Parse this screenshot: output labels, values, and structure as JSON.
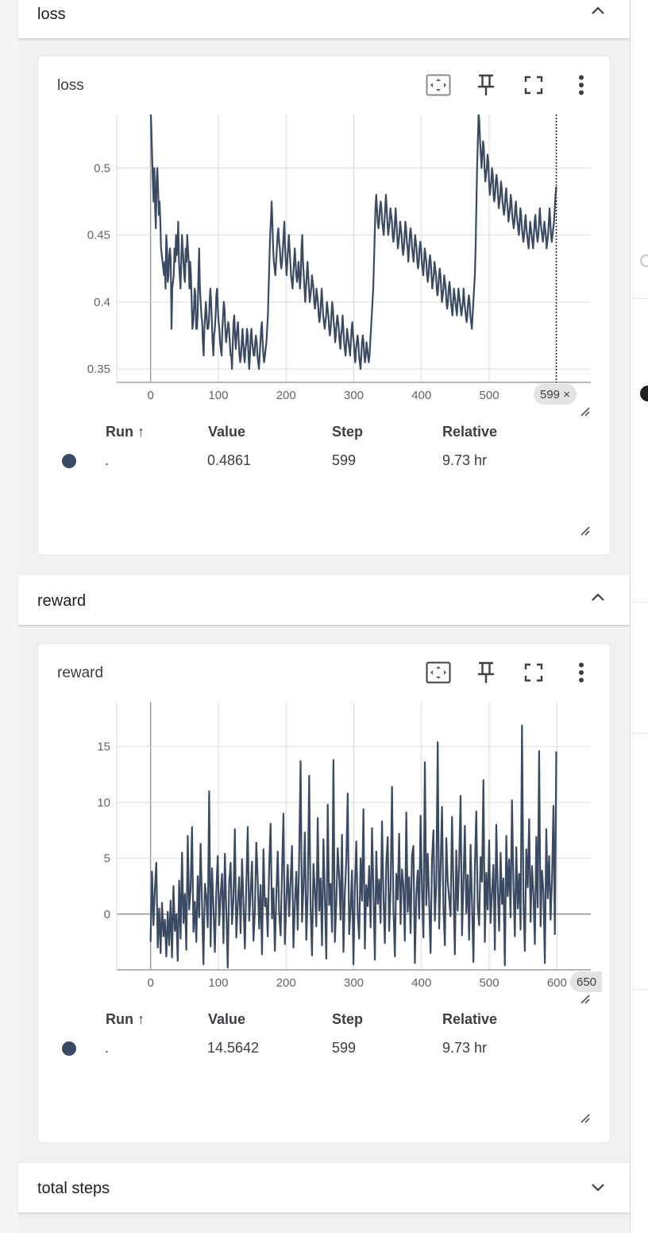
{
  "sections": {
    "loss": {
      "title": "loss"
    },
    "reward": {
      "title": "reward"
    },
    "total_steps": {
      "title": "total steps"
    }
  },
  "table_headers": {
    "run": "Run ↑",
    "value": "Value",
    "step": "Step",
    "relative": "Relative"
  },
  "cards": [
    {
      "title": "loss",
      "row": {
        "run": ".",
        "value": "0.4861",
        "step": "599",
        "relative": "9.73 hr"
      },
      "selected_step_chip": "599 ×"
    },
    {
      "title": "reward",
      "row": {
        "run": ".",
        "value": "14.5642",
        "step": "599",
        "relative": "9.73 hr"
      }
    }
  ],
  "colors": {
    "series": "#3b4a63",
    "grid": "#d9d9d9",
    "axis": "#9e9e9e"
  },
  "icons": [
    "fit-domain-icon",
    "pin-icon",
    "fullscreen-icon",
    "more-vert-icon",
    "chevron-up-icon",
    "chevron-down-icon",
    "resize-handle-icon"
  ],
  "chart_data": [
    {
      "type": "line",
      "title": "loss",
      "xlim": [
        -50,
        650
      ],
      "ylim": [
        0.34,
        0.54
      ],
      "x_ticks": [
        0,
        100,
        200,
        300,
        400,
        500
      ],
      "x_tick_labels": [
        "0",
        "100",
        "200",
        "300",
        "400",
        "500"
      ],
      "y_ticks": [
        0.35,
        0.4,
        0.45,
        0.5
      ],
      "y_tick_labels": [
        "0.35",
        "0.4",
        "0.45",
        "0.5"
      ],
      "selected_step": 599,
      "series": [
        {
          "values": [
            0.545,
            0.53,
            0.51,
            0.49,
            0.475,
            0.5,
            0.47,
            0.455,
            0.49,
            0.5,
            0.485,
            0.465,
            0.475,
            0.46,
            0.44,
            0.435,
            0.43,
            0.425,
            0.42,
            0.43,
            0.41,
            0.45,
            0.44,
            0.415,
            0.42,
            0.435,
            0.44,
            0.43,
            0.38,
            0.41,
            0.415,
            0.42,
            0.44,
            0.43,
            0.45,
            0.435,
            0.44,
            0.46,
            0.43,
            0.42,
            0.41,
            0.43,
            0.45,
            0.44,
            0.43,
            0.42,
            0.415,
            0.44,
            0.43,
            0.45,
            0.44,
            0.43,
            0.41,
            0.43,
            0.42,
            0.4,
            0.38,
            0.385,
            0.395,
            0.41,
            0.405,
            0.38,
            0.38,
            0.39,
            0.42,
            0.44,
            0.41,
            0.4,
            0.39,
            0.385,
            0.37,
            0.36,
            0.38,
            0.39,
            0.4,
            0.39,
            0.38,
            0.38,
            0.385,
            0.4,
            0.41,
            0.4,
            0.385,
            0.37,
            0.36,
            0.375,
            0.38,
            0.39,
            0.405,
            0.41,
            0.395,
            0.385,
            0.38,
            0.37,
            0.365,
            0.36,
            0.38,
            0.39,
            0.4,
            0.395,
            0.38,
            0.37,
            0.375,
            0.38,
            0.385,
            0.38,
            0.37,
            0.36,
            0.36,
            0.35,
            0.37,
            0.385,
            0.39,
            0.375,
            0.365,
            0.375,
            0.38,
            0.385,
            0.37,
            0.36,
            0.355,
            0.36,
            0.37,
            0.38,
            0.37,
            0.36,
            0.355,
            0.365,
            0.37,
            0.38,
            0.375,
            0.36,
            0.35,
            0.36,
            0.375,
            0.38,
            0.37,
            0.365,
            0.36,
            0.36,
            0.37,
            0.375,
            0.37,
            0.36,
            0.355,
            0.35,
            0.36,
            0.37,
            0.38,
            0.385,
            0.37,
            0.36,
            0.355,
            0.36,
            0.365,
            0.37,
            0.38,
            0.39,
            0.41,
            0.43,
            0.45,
            0.46,
            0.475,
            0.46,
            0.44,
            0.43,
            0.425,
            0.42,
            0.43,
            0.44,
            0.45,
            0.455,
            0.445,
            0.44,
            0.43,
            0.425,
            0.43,
            0.44,
            0.45,
            0.46,
            0.44,
            0.43,
            0.42,
            0.43,
            0.44,
            0.45,
            0.44,
            0.43,
            0.42,
            0.415,
            0.41,
            0.42,
            0.43,
            0.44,
            0.43,
            0.42,
            0.415,
            0.42,
            0.43,
            0.42,
            0.41,
            0.42,
            0.44,
            0.45,
            0.43,
            0.42,
            0.41,
            0.4,
            0.41,
            0.42,
            0.43,
            0.42,
            0.41,
            0.4,
            0.405,
            0.41,
            0.42,
            0.415,
            0.41,
            0.4,
            0.395,
            0.4,
            0.41,
            0.405,
            0.4,
            0.39,
            0.385,
            0.39,
            0.4,
            0.41,
            0.4,
            0.39,
            0.385,
            0.38,
            0.385,
            0.39,
            0.4,
            0.395,
            0.39,
            0.38,
            0.375,
            0.38,
            0.39,
            0.4,
            0.395,
            0.385,
            0.38,
            0.37,
            0.375,
            0.385,
            0.39,
            0.385,
            0.38,
            0.37,
            0.365,
            0.375,
            0.38,
            0.39,
            0.38,
            0.37,
            0.365,
            0.36,
            0.37,
            0.38,
            0.375,
            0.37,
            0.365,
            0.36,
            0.37,
            0.38,
            0.385,
            0.375,
            0.37,
            0.36,
            0.355,
            0.365,
            0.37,
            0.375,
            0.37,
            0.36,
            0.355,
            0.35,
            0.36,
            0.37,
            0.375,
            0.37,
            0.36,
            0.355,
            0.36,
            0.37,
            0.365,
            0.36,
            0.355,
            0.36,
            0.37,
            0.38,
            0.39,
            0.4,
            0.41,
            0.43,
            0.45,
            0.47,
            0.48,
            0.47,
            0.46,
            0.455,
            0.46,
            0.47,
            0.475,
            0.47,
            0.46,
            0.455,
            0.45,
            0.46,
            0.47,
            0.48,
            0.47,
            0.46,
            0.45,
            0.455,
            0.46,
            0.47,
            0.465,
            0.46,
            0.45,
            0.445,
            0.45,
            0.46,
            0.47,
            0.46,
            0.45,
            0.44,
            0.445,
            0.45,
            0.46,
            0.455,
            0.45,
            0.44,
            0.435,
            0.44,
            0.45,
            0.46,
            0.455,
            0.445,
            0.44,
            0.43,
            0.44,
            0.45,
            0.455,
            0.45,
            0.44,
            0.435,
            0.43,
            0.44,
            0.45,
            0.445,
            0.44,
            0.43,
            0.425,
            0.43,
            0.44,
            0.445,
            0.44,
            0.43,
            0.425,
            0.42,
            0.43,
            0.44,
            0.435,
            0.43,
            0.42,
            0.415,
            0.42,
            0.43,
            0.435,
            0.43,
            0.42,
            0.41,
            0.415,
            0.42,
            0.43,
            0.425,
            0.42,
            0.41,
            0.405,
            0.41,
            0.42,
            0.425,
            0.42,
            0.41,
            0.4,
            0.405,
            0.41,
            0.42,
            0.415,
            0.41,
            0.4,
            0.395,
            0.4,
            0.41,
            0.415,
            0.41,
            0.4,
            0.395,
            0.39,
            0.4,
            0.41,
            0.405,
            0.4,
            0.395,
            0.39,
            0.4,
            0.41,
            0.405,
            0.4,
            0.395,
            0.39,
            0.395,
            0.4,
            0.41,
            0.4,
            0.395,
            0.39,
            0.385,
            0.39,
            0.4,
            0.405,
            0.4,
            0.39,
            0.385,
            0.38,
            0.39,
            0.4,
            0.41,
            0.42,
            0.44,
            0.47,
            0.5,
            0.52,
            0.54,
            0.535,
            0.52,
            0.51,
            0.5,
            0.51,
            0.52,
            0.515,
            0.5,
            0.49,
            0.495,
            0.5,
            0.51,
            0.505,
            0.49,
            0.48,
            0.485,
            0.49,
            0.5,
            0.495,
            0.48,
            0.475,
            0.48,
            0.49,
            0.495,
            0.49,
            0.48,
            0.47,
            0.475,
            0.48,
            0.49,
            0.485,
            0.475,
            0.47,
            0.465,
            0.47,
            0.48,
            0.485,
            0.475,
            0.47,
            0.46,
            0.465,
            0.47,
            0.48,
            0.475,
            0.465,
            0.46,
            0.455,
            0.46,
            0.47,
            0.475,
            0.465,
            0.46,
            0.455,
            0.45,
            0.46,
            0.47,
            0.465,
            0.455,
            0.45,
            0.445,
            0.45,
            0.46,
            0.465,
            0.455,
            0.45,
            0.445,
            0.44,
            0.45,
            0.46,
            0.455,
            0.45,
            0.445,
            0.44,
            0.45,
            0.46,
            0.465,
            0.455,
            0.45,
            0.445,
            0.45,
            0.46,
            0.47,
            0.46,
            0.455,
            0.45,
            0.445,
            0.45,
            0.46,
            0.455,
            0.45,
            0.44,
            0.445,
            0.45,
            0.46,
            0.47,
            0.46,
            0.45,
            0.445,
            0.45,
            0.455,
            0.46,
            0.47,
            0.48,
            0.4861
          ]
        }
      ]
    },
    {
      "type": "line",
      "title": "reward",
      "xlim": [
        -50,
        650
      ],
      "ylim": [
        -5,
        19
      ],
      "x_ticks": [
        0,
        100,
        200,
        300,
        400,
        500,
        600
      ],
      "x_tick_labels": [
        "0",
        "100",
        "200",
        "300",
        "400",
        "500",
        "600"
      ],
      "x_partial_label": "650",
      "y_ticks": [
        0,
        5,
        10,
        15
      ],
      "y_tick_labels": [
        "0",
        "5",
        "10",
        "15"
      ],
      "series": [
        {
          "values": [
            -2.5,
            3.8,
            -1.0,
            2.2,
            4.6,
            -3.0,
            0.5,
            -3.5,
            1.0,
            -2.0,
            -0.5,
            -3.8,
            0.2,
            -2.8,
            1.2,
            -3.9,
            2.5,
            -1.5,
            0.0,
            -4.2,
            3.0,
            -2.2,
            5.5,
            -0.8,
            1.8,
            -3.2,
            7.0,
            0.4,
            2.2,
            7.8,
            -1.6,
            1.1,
            -2.5,
            3.4,
            -0.3,
            6.3,
            0.9,
            -4.5,
            2.7,
            1.5,
            -1.2,
            11.0,
            -2.9,
            4.1,
            0.6,
            -3.4,
            2.0,
            5.2,
            -1.0,
            1.7,
            3.6,
            -2.6,
            5.4,
            0.3,
            -4.8,
            2.8,
            4.6,
            -0.9,
            1.3,
            7.6,
            -2.1,
            0.8,
            3.3,
            -1.7,
            4.9,
            1.0,
            -3.1,
            2.5,
            7.8,
            -0.6,
            1.9,
            4.7,
            -2.4,
            0.2,
            6.4,
            3.1,
            -1.3,
            2.6,
            -3.6,
            5.8,
            0.7,
            1.4,
            -2.0,
            4.2,
            8.1,
            -0.4,
            2.3,
            -3.3,
            1.6,
            5.6,
            0.1,
            -1.9,
            3.7,
            9.0,
            -2.7,
            1.1,
            4.4,
            -0.2,
            2.9,
            6.1,
            -3.0,
            0.9,
            3.8,
            -1.4,
            5.1,
            13.7,
            -0.7,
            2.4,
            7.3,
            -2.3,
            1.8,
            12.4,
            0.6,
            -3.7,
            4.5,
            2.1,
            -1.1,
            8.6,
            0.3,
            3.2,
            -2.8,
            6.7,
            1.5,
            -4.0,
            9.8,
            0.8,
            2.7,
            -1.6,
            13.8,
            -2.5,
            1.0,
            5.9,
            3.4,
            -0.5,
            7.1,
            -3.4,
            1.9,
            4.8,
            10.8,
            -1.8,
            0.4,
            3.9,
            -4.5,
            2.3,
            6.5,
            0.0,
            -2.2,
            5.0,
            1.2,
            9.4,
            -3.1,
            2.6,
            0.7,
            4.3,
            -1.2,
            7.7,
            2.0,
            -4.1,
            5.6,
            0.9,
            3.1,
            -0.8,
            8.3,
            1.6,
            -2.6,
            4.6,
            6.9,
            -1.5,
            2.2,
            11.4,
            0.5,
            -3.8,
            3.6,
            1.3,
            7.2,
            -0.9,
            4.0,
            2.5,
            -2.4,
            9.1,
            0.2,
            3.3,
            -1.7,
            5.3,
            6.1,
            -4.4,
            1.7,
            3.9,
            -0.4,
            8.8,
            2.1,
            -2.1,
            13.6,
            0.8,
            5.4,
            1.1,
            -3.5,
            4.9,
            7.5,
            -0.6,
            2.8,
            15.4,
            -1.3,
            4.1,
            9.6,
            0.6,
            -2.8,
            6.8,
            3.0,
            1.4,
            -0.2,
            8.7,
            2.4,
            -3.6,
            5.7,
            0.3,
            4.6,
            10.6,
            -1.9,
            2.7,
            7.9,
            0.1,
            3.5,
            -2.3,
            6.2,
            1.0,
            -4.3,
            4.2,
            9.2,
            0.7,
            -1.0,
            5.1,
            2.9,
            12.0,
            -2.5,
            3.7,
            0.4,
            6.6,
            -0.8,
            1.9,
            4.4,
            -3.2,
            8.0,
            2.3,
            -1.5,
            5.5,
            0.9,
            3.2,
            -4.6,
            7.0,
            1.6,
            4.9,
            -0.3,
            10.2,
            2.6,
            -2.0,
            6.0,
            0.5,
            3.6,
            -1.4,
            16.9,
            1.2,
            -3.3,
            5.8,
            2.4,
            8.5,
            -0.7,
            4.3,
            1.8,
            -2.7,
            6.9,
            0.6,
            14.6,
            -1.1,
            3.9,
            2.0,
            -4.4,
            7.6,
            1.4,
            5.2,
            -0.5,
            3.0,
            9.7,
            -1.8,
            14.5642
          ]
        }
      ]
    }
  ]
}
